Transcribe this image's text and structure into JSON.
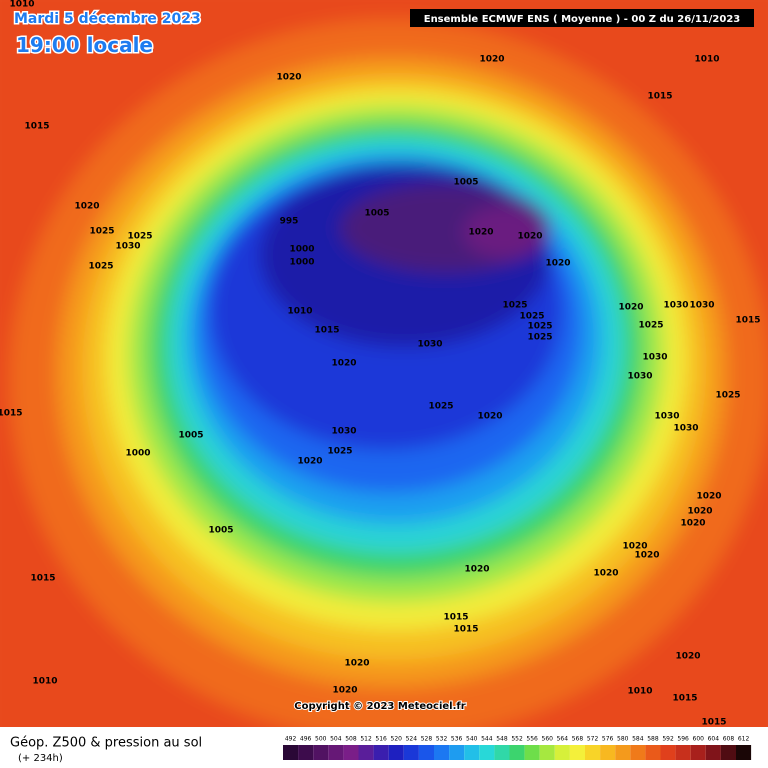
{
  "header": {
    "date": "Mardi 5 décembre 2023",
    "time": "19:00 locale",
    "model": "Ensemble ECMWF ENS  ( Moyenne )  -  00 Z du 26/11/2023"
  },
  "footer": {
    "title": "Géop. Z500 & pression au sol",
    "lead": "(+ 234h)",
    "copyright": "Copyright © 2023 Meteociel.fr"
  },
  "isobar_labels": [
    1010,
    1020,
    1020,
    1010,
    1015,
    1015,
    1005,
    1005,
    995,
    1000,
    1000,
    1020,
    1025,
    1025,
    1030,
    1025,
    1020,
    1020,
    1020,
    1010,
    1015,
    1025,
    1025,
    1025,
    1025,
    1020,
    1030,
    1030,
    1025,
    1015,
    1020,
    1030,
    1030,
    1030,
    1025,
    1020,
    1015,
    1005,
    1030,
    1025,
    1000,
    1020,
    1030,
    1030,
    1025,
    1020,
    1020,
    1020,
    1005,
    1020,
    1020,
    1020,
    1020,
    1015,
    1015,
    1015,
    1020,
    1010,
    1020,
    1020,
    1015,
    1010,
    1015
  ],
  "colorbar": {
    "labels": [
      492,
      496,
      500,
      504,
      508,
      512,
      516,
      520,
      524,
      528,
      532,
      536,
      540,
      544,
      548,
      552,
      556,
      560,
      564,
      568,
      572,
      576,
      580,
      584,
      588,
      592,
      596,
      600,
      604,
      608,
      612
    ],
    "colors": [
      "#2a0836",
      "#3d0c4c",
      "#511262",
      "#661876",
      "#7a1e88",
      "#5a1e9a",
      "#3a1eae",
      "#1e20c0",
      "#1a38d8",
      "#1a56ea",
      "#1c78f2",
      "#1e9cf0",
      "#22bfe8",
      "#28d8d8",
      "#30d8a8",
      "#3cd46e",
      "#6ede4a",
      "#a6e840",
      "#d6f03a",
      "#f4f03a",
      "#f8d428",
      "#f8b820",
      "#f49a1c",
      "#f07a1a",
      "#ea5a1a",
      "#e0401c",
      "#c8301c",
      "#a8201c",
      "#80141a",
      "#500c12",
      "#1a0606"
    ]
  }
}
